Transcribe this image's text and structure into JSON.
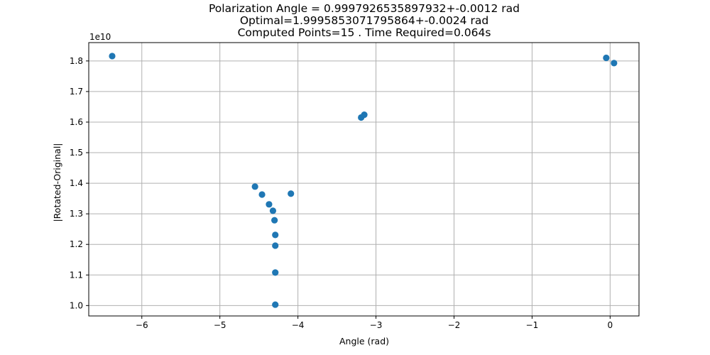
{
  "chart_data": {
    "type": "scatter",
    "title_lines": [
      "Polarization Angle = 0.9997926535897932+-0.0012 rad",
      "Optimal=1.9995853071795864+-0.0024 rad",
      "Computed Points=15 . Time Required=0.064s"
    ],
    "xlabel": "Angle (rad)",
    "ylabel": "|Rotated-Original|",
    "y_offset_label": "1e10",
    "xlim": [
      -6.68,
      0.37
    ],
    "ylim": [
      0.966,
      1.86
    ],
    "xticks": [
      -6,
      -5,
      -4,
      -3,
      -2,
      -1,
      0
    ],
    "xtick_labels": [
      "−6",
      "−5",
      "−4",
      "−3",
      "−2",
      "−1",
      "0"
    ],
    "yticks": [
      1.0,
      1.1,
      1.2,
      1.3,
      1.4,
      1.5,
      1.6,
      1.7,
      1.8
    ],
    "ytick_labels": [
      "1.0",
      "1.1",
      "1.2",
      "1.3",
      "1.4",
      "1.5",
      "1.6",
      "1.7",
      "1.8"
    ],
    "grid": true,
    "marker_color": "#1f77b4",
    "points": [
      {
        "x": -6.38,
        "y": 1.816
      },
      {
        "x": -4.55,
        "y": 1.389
      },
      {
        "x": -4.46,
        "y": 1.363
      },
      {
        "x": -4.37,
        "y": 1.331
      },
      {
        "x": -4.32,
        "y": 1.31
      },
      {
        "x": -4.3,
        "y": 1.279
      },
      {
        "x": -4.29,
        "y": 1.231
      },
      {
        "x": -4.29,
        "y": 1.196
      },
      {
        "x": -4.29,
        "y": 1.108
      },
      {
        "x": -4.29,
        "y": 1.003
      },
      {
        "x": -4.09,
        "y": 1.366
      },
      {
        "x": -3.19,
        "y": 1.615
      },
      {
        "x": -3.15,
        "y": 1.624
      },
      {
        "x": -0.05,
        "y": 1.81
      },
      {
        "x": 0.05,
        "y": 1.793
      }
    ]
  }
}
